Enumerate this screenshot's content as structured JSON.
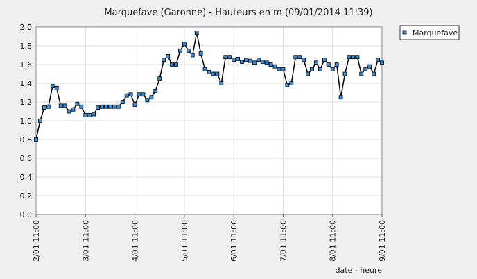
{
  "chart_data": {
    "type": "line",
    "title": "Marquefave (Garonne) - Hauteurs en m (09/01/2014 11:39)",
    "x_label": "date - heure",
    "x": [
      "2/01 11:00",
      "2/01 13:00",
      "2/01 15:00",
      "2/01 17:00",
      "2/01 19:00",
      "2/01 21:00",
      "2/01 23:00",
      "3/01 01:00",
      "3/01 03:00",
      "3/01 05:00",
      "3/01 07:00",
      "3/01 09:00",
      "3/01 11:00",
      "3/01 13:00",
      "3/01 15:00",
      "3/01 17:00",
      "3/01 19:00",
      "3/01 21:00",
      "3/01 23:00",
      "4/01 01:00",
      "4/01 03:00",
      "4/01 05:00",
      "4/01 07:00",
      "4/01 09:00",
      "4/01 11:00",
      "4/01 13:00",
      "4/01 15:00",
      "4/01 17:00",
      "4/01 19:00",
      "4/01 21:00",
      "4/01 23:00",
      "5/01 01:00",
      "5/01 03:00",
      "5/01 05:00",
      "5/01 07:00",
      "5/01 09:00",
      "5/01 11:00",
      "5/01 13:00",
      "5/01 15:00",
      "5/01 17:00",
      "5/01 19:00",
      "5/01 21:00",
      "5/01 23:00",
      "6/01 01:00",
      "6/01 03:00",
      "6/01 05:00",
      "6/01 07:00",
      "6/01 09:00",
      "6/01 11:00",
      "6/01 13:00",
      "6/01 15:00",
      "6/01 17:00",
      "6/01 19:00",
      "6/01 21:00",
      "6/01 23:00",
      "7/01 01:00",
      "7/01 03:00",
      "7/01 05:00",
      "7/01 07:00",
      "7/01 09:00",
      "7/01 11:00",
      "7/01 13:00",
      "7/01 15:00",
      "7/01 17:00",
      "7/01 19:00",
      "7/01 21:00",
      "7/01 23:00",
      "8/01 01:00",
      "8/01 03:00",
      "8/01 05:00",
      "8/01 07:00",
      "8/01 09:00",
      "8/01 11:00",
      "8/01 13:00",
      "8/01 15:00",
      "8/01 17:00",
      "8/01 19:00",
      "8/01 21:00",
      "8/01 23:00",
      "9/01 01:00",
      "9/01 03:00",
      "9/01 05:00",
      "9/01 07:00",
      "9/01 09:00",
      "9/01 11:00"
    ],
    "series": [
      {
        "name": "Marquefave",
        "color": "#3a8cd6",
        "values": [
          0.8,
          1.0,
          1.14,
          1.15,
          1.37,
          1.35,
          1.16,
          1.16,
          1.1,
          1.12,
          1.18,
          1.15,
          1.06,
          1.06,
          1.07,
          1.14,
          1.15,
          1.15,
          1.15,
          1.15,
          1.15,
          1.2,
          1.27,
          1.28,
          1.17,
          1.28,
          1.28,
          1.22,
          1.25,
          1.32,
          1.45,
          1.65,
          1.69,
          1.6,
          1.6,
          1.75,
          1.82,
          1.75,
          1.7,
          1.94,
          1.72,
          1.55,
          1.52,
          1.5,
          1.5,
          1.4,
          1.68,
          1.68,
          1.65,
          1.66,
          1.63,
          1.65,
          1.64,
          1.62,
          1.65,
          1.63,
          1.62,
          1.6,
          1.58,
          1.55,
          1.55,
          1.38,
          1.4,
          1.68,
          1.68,
          1.65,
          1.5,
          1.55,
          1.62,
          1.55,
          1.65,
          1.6,
          1.55,
          1.6,
          1.25,
          1.5,
          1.68,
          1.68,
          1.68,
          1.5,
          1.55,
          1.58,
          1.5,
          1.65,
          1.62
        ]
      }
    ],
    "xlim": [
      "2/01 11:00",
      "9/01 11:00"
    ],
    "xticks": [
      "2/01 11:00",
      "3/01 11:00",
      "4/01 11:00",
      "5/01 11:00",
      "6/01 11:00",
      "7/01 11:00",
      "8/01 11:00",
      "9/01 11:00"
    ],
    "ylim": [
      0,
      2
    ],
    "yticks": [
      {
        "value": 0,
        "label": "0.0"
      },
      0.2,
      0.4,
      0.6,
      0.8,
      {
        "value": 1,
        "label": "1.0"
      },
      1.2,
      1.4,
      1.6,
      1.8,
      {
        "value": 2,
        "label": "2.0"
      }
    ],
    "grid": true,
    "legend": "right"
  }
}
